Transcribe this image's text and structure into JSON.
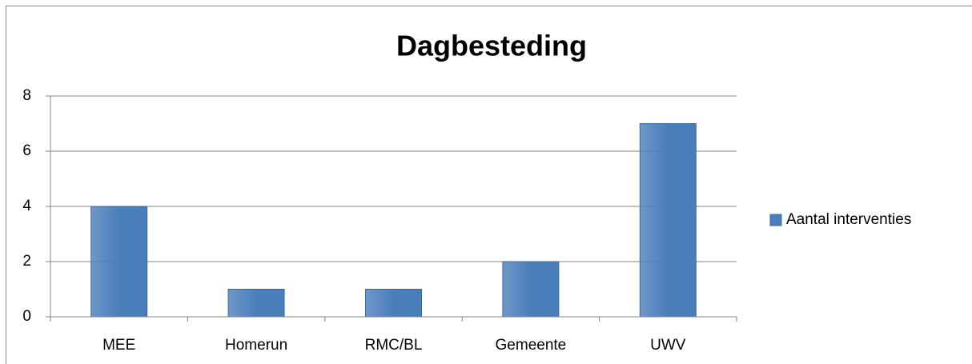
{
  "chart_data": {
    "type": "bar",
    "title": "Dagbesteding",
    "categories": [
      "MEE",
      "Homerun",
      "RMC/BL",
      "Gemeente",
      "UWV"
    ],
    "series": [
      {
        "name": "Aantal interventies",
        "color": "#4a7ebb",
        "values": [
          4,
          1,
          1,
          2,
          7
        ]
      }
    ],
    "ylim": [
      0,
      8
    ],
    "yticks": [
      0,
      2,
      4,
      6,
      8
    ],
    "grid": true,
    "legend": "right"
  }
}
